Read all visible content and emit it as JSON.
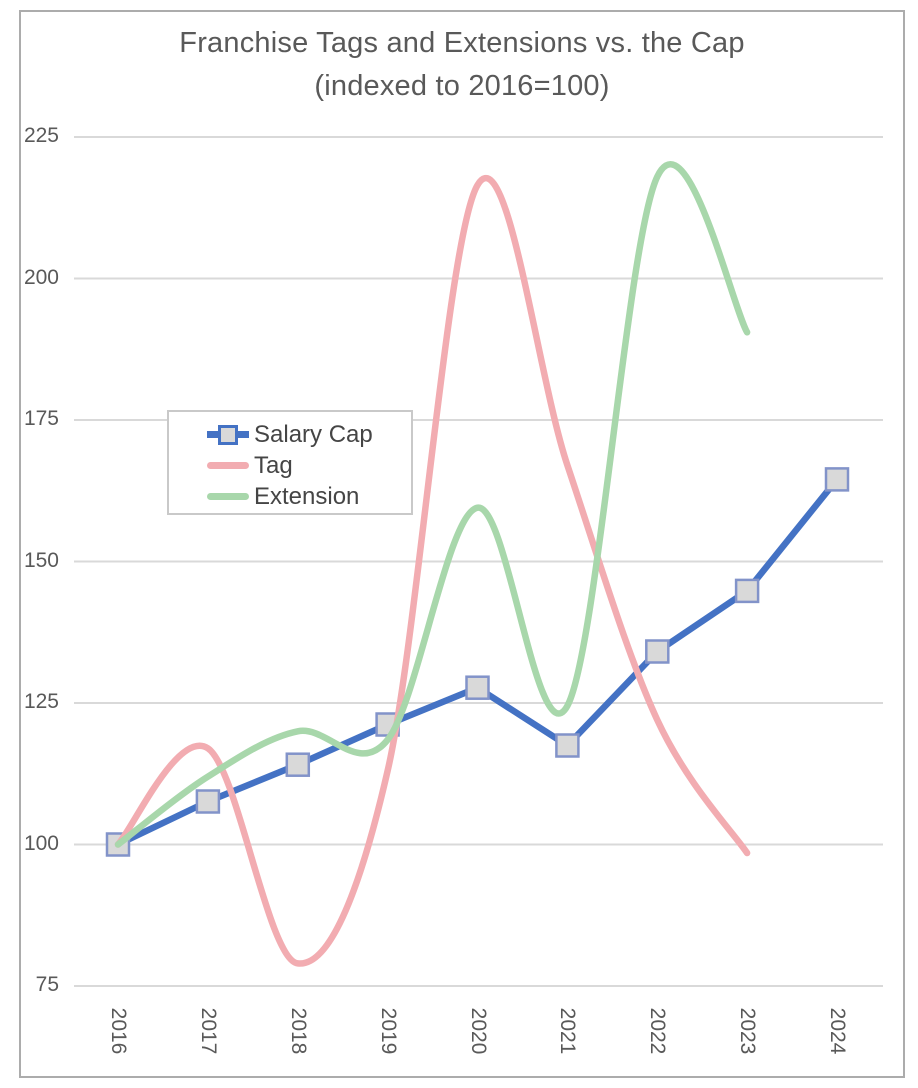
{
  "chart_data": {
    "type": "line",
    "title": "Franchise Tags and Extensions vs. the Cap",
    "subtitle": "(indexed to 2016=100)",
    "categories": [
      "2016",
      "2017",
      "2018",
      "2019",
      "2020",
      "2021",
      "2022",
      "2023",
      "2024"
    ],
    "series": [
      {
        "name": "Salary Cap",
        "color": "#4472C4",
        "smooth": false,
        "marker": "square",
        "values": [
          100,
          107.6,
          114.1,
          121.2,
          127.7,
          117.5,
          134.1,
          144.8,
          164.5
        ]
      },
      {
        "name": "Tag",
        "color": "#F2ACB1",
        "smooth": true,
        "marker": "none",
        "values": [
          100,
          117,
          79,
          113,
          216.5,
          167,
          122,
          98.5,
          null
        ]
      },
      {
        "name": "Extension",
        "color": "#A8D7AB",
        "smooth": true,
        "marker": "none",
        "values": [
          100,
          112,
          120,
          118.5,
          159.5,
          124.5,
          218,
          190.5,
          null
        ]
      }
    ],
    "ylim": [
      75,
      225
    ],
    "y_ticks": [
      225,
      200,
      175,
      150,
      125,
      100,
      75
    ],
    "grid": true,
    "legend_position": "inside-top-left"
  },
  "colors": {
    "blue": "#4472C4",
    "pink": "#F2ACB1",
    "green": "#A8D7AB",
    "marker_fill": "#D9D9D9",
    "marker_stroke": "#8293C9",
    "gridline": "#D9D9D9",
    "frame_border": "#ACACAC",
    "text": "#595959",
    "legend_text": "#454545",
    "legend_border": "#C9C9C9"
  }
}
